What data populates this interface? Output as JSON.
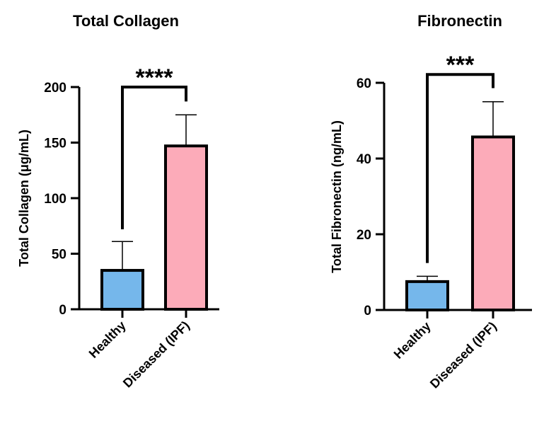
{
  "chart_data": [
    {
      "type": "bar",
      "title": "Total Collagen",
      "ylabel": "Total Collagen (μg/mL)",
      "xlabel": "",
      "categories": [
        "Healthy",
        "Diseased (IPF)"
      ],
      "values": [
        35,
        147
      ],
      "error_upper": [
        61,
        175
      ],
      "ylim": [
        0,
        200
      ],
      "yticks": [
        0,
        50,
        100,
        150,
        200
      ],
      "colors": [
        "#75b7eb",
        "#fcabb9"
      ],
      "significance": "****",
      "bracket": {
        "left_end": 72,
        "right_end": 187,
        "top": 200
      },
      "grid": false
    },
    {
      "type": "bar",
      "title": "Fibronectin",
      "ylabel": "Total Fibronectin (ng/mL)",
      "xlabel": "",
      "categories": [
        "Healthy",
        "Diseased (IPF)"
      ],
      "values": [
        7.5,
        45.7
      ],
      "error_upper": [
        8.9,
        55
      ],
      "ylim": [
        0,
        60
      ],
      "yticks": [
        0,
        20,
        40,
        60
      ],
      "colors": [
        "#75b7eb",
        "#fcabb9"
      ],
      "significance": "***",
      "bracket": {
        "left_end": 12.4,
        "right_end": 58.6,
        "top": 62.2
      },
      "grid": false
    }
  ]
}
